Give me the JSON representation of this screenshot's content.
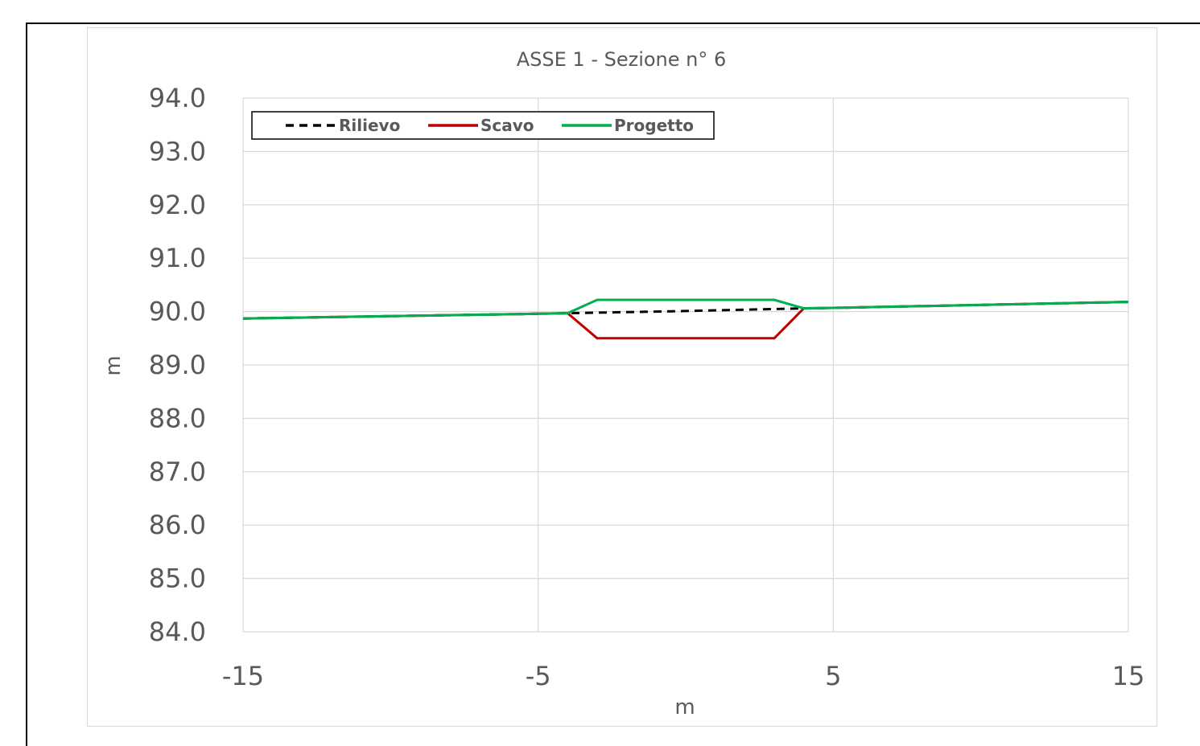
{
  "chart_data": {
    "type": "line",
    "title": "ASSE 1 - Sezione n° 6",
    "xlabel": "m",
    "ylabel": "m",
    "xlim": [
      -15,
      15
    ],
    "ylim": [
      84.0,
      94.0
    ],
    "x_ticks": [
      -15,
      -5,
      5,
      15
    ],
    "y_ticks": [
      84.0,
      85.0,
      86.0,
      87.0,
      88.0,
      89.0,
      90.0,
      91.0,
      92.0,
      93.0,
      94.0
    ],
    "x_tick_labels": [
      "-15",
      "-5",
      "5",
      "15"
    ],
    "y_tick_labels": [
      "84.0",
      "85.0",
      "86.0",
      "87.0",
      "88.0",
      "89.0",
      "90.0",
      "91.0",
      "92.0",
      "93.0",
      "94.0"
    ],
    "grid": true,
    "legend_position": "top-left",
    "series": [
      {
        "name": "Rilievo",
        "color": "#000000",
        "dash": true,
        "x": [
          -15,
          -5,
          -4.0,
          0,
          4.0,
          5,
          15
        ],
        "y": [
          89.87,
          89.96,
          89.97,
          90.01,
          90.06,
          90.07,
          90.18
        ]
      },
      {
        "name": "Scavo",
        "color": "#c00000",
        "dash": false,
        "x": [
          -15,
          -5,
          -4.0,
          -3.0,
          3.0,
          4.0,
          5,
          15
        ],
        "y": [
          89.87,
          89.96,
          89.97,
          89.5,
          89.5,
          90.06,
          90.07,
          90.18
        ]
      },
      {
        "name": "Progetto",
        "color": "#00b050",
        "dash": false,
        "x": [
          -15,
          -5,
          -4.0,
          -3.0,
          3.0,
          4.0,
          5,
          15
        ],
        "y": [
          89.87,
          89.96,
          89.97,
          90.22,
          90.22,
          90.06,
          90.07,
          90.18
        ]
      }
    ]
  },
  "colors": {
    "grid": "#d9d9d9",
    "axis_text": "#595959",
    "frame": "#000000"
  }
}
